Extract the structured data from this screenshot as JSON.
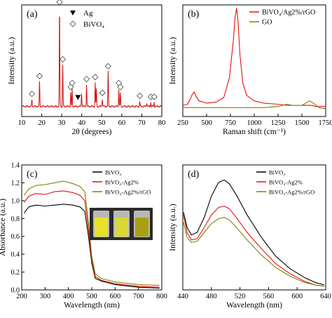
{
  "chart_data": [
    {
      "panel_label": "(a)",
      "type": "line",
      "xlabel": "2θ (degrees)",
      "ylabel": "Intensity (a.u.)",
      "xlim": [
        10,
        80
      ],
      "xticks": [
        10,
        20,
        30,
        40,
        50,
        60,
        70,
        80
      ],
      "yticks_shown": false,
      "legend": [
        {
          "marker": "filled-down-triangle",
          "label": "Ag"
        },
        {
          "marker": "open-diamond",
          "label": "BiVO₄"
        }
      ],
      "legend_position": "top-center",
      "series": [
        {
          "color": "#d01010",
          "peaks": [
            [
              15.1,
              0.07
            ],
            [
              18.9,
              0.25
            ],
            [
              28.9,
              1.0
            ],
            [
              30.5,
              0.42
            ],
            [
              34.5,
              0.14
            ],
            [
              35.2,
              0.18
            ],
            [
              39.9,
              0.14
            ],
            [
              42.4,
              0.22
            ],
            [
              46.7,
              0.24
            ],
            [
              47.3,
              0.18
            ],
            [
              50.3,
              0.08
            ],
            [
              53.2,
              0.35
            ],
            [
              58.5,
              0.18
            ],
            [
              59.3,
              0.14
            ],
            [
              69.0,
              0.05
            ],
            [
              72.5,
              0.04
            ],
            [
              74.5,
              0.04
            ],
            [
              76.2,
              0.04
            ]
          ]
        }
      ],
      "markers": {
        "diamond": [
          15.1,
          18.9,
          28.9,
          30.5,
          34.5,
          35.2,
          42.4,
          46.7,
          50.3,
          53.2,
          58.5,
          59.3,
          69.0,
          74.5,
          76.2
        ],
        "triangle": [
          38.1
        ]
      }
    },
    {
      "panel_label": "(b)",
      "type": "line",
      "xlabel": "Raman shift (cm⁻¹)",
      "ylabel": "Intensity (a.u.)",
      "xlim": [
        250,
        1750
      ],
      "xticks": [
        250,
        500,
        750,
        1000,
        1250,
        1500,
        1750
      ],
      "yticks_shown": false,
      "legend_position": "top-right",
      "series": [
        {
          "name": "BiVO₄/Ag2%/rGO",
          "color": "#e81010",
          "points": [
            [
              250,
              0.1
            ],
            [
              300,
              0.11
            ],
            [
              330,
              0.16
            ],
            [
              350,
              0.2
            ],
            [
              370,
              0.22
            ],
            [
              390,
              0.18
            ],
            [
              420,
              0.14
            ],
            [
              500,
              0.12
            ],
            [
              600,
              0.13
            ],
            [
              680,
              0.17
            ],
            [
              740,
              0.35
            ],
            [
              780,
              0.68
            ],
            [
              800,
              0.9
            ],
            [
              815,
              0.97
            ],
            [
              830,
              0.85
            ],
            [
              850,
              0.55
            ],
            [
              880,
              0.3
            ],
            [
              920,
              0.19
            ],
            [
              1000,
              0.14
            ],
            [
              1100,
              0.12
            ],
            [
              1250,
              0.11
            ],
            [
              1350,
              0.1
            ],
            [
              1500,
              0.1
            ],
            [
              1600,
              0.1
            ],
            [
              1650,
              0.09
            ],
            [
              1750,
              0.09
            ]
          ]
        },
        {
          "name": "GO",
          "color": "#808000",
          "points": [
            [
              250,
              0.08
            ],
            [
              500,
              0.08
            ],
            [
              800,
              0.08
            ],
            [
              1100,
              0.08
            ],
            [
              1250,
              0.09
            ],
            [
              1340,
              0.11
            ],
            [
              1400,
              0.1
            ],
            [
              1500,
              0.1
            ],
            [
              1580,
              0.14
            ],
            [
              1620,
              0.12
            ],
            [
              1680,
              0.08
            ],
            [
              1750,
              0.07
            ]
          ]
        }
      ]
    },
    {
      "panel_label": "(c)",
      "type": "line",
      "xlabel": "Wavelength (nm)",
      "ylabel": "Absorbance (a.u.)",
      "xlim": [
        200,
        800
      ],
      "ylim": [
        0,
        1.4
      ],
      "xticks": [
        200,
        300,
        400,
        500,
        600,
        700,
        800
      ],
      "yticks": [
        0.0,
        0.2,
        0.4,
        0.6,
        0.8,
        1.0,
        1.2,
        1.4
      ],
      "legend_position": "top-right",
      "inset": "photo of three sample vials",
      "series": [
        {
          "name": "BiVO₄",
          "color": "#000000",
          "points": [
            [
              210,
              0.86
            ],
            [
              230,
              0.93
            ],
            [
              260,
              0.95
            ],
            [
              300,
              0.94
            ],
            [
              340,
              0.95
            ],
            [
              380,
              0.96
            ],
            [
              420,
              0.95
            ],
            [
              450,
              0.93
            ],
            [
              470,
              0.88
            ],
            [
              485,
              0.62
            ],
            [
              500,
              0.3
            ],
            [
              515,
              0.13
            ],
            [
              540,
              0.1
            ],
            [
              600,
              0.06
            ],
            [
              700,
              0.03
            ],
            [
              790,
              0.02
            ]
          ]
        },
        {
          "name": "BiVO₄-Ag2%",
          "color": "#e81010",
          "points": [
            [
              210,
              0.98
            ],
            [
              230,
              1.05
            ],
            [
              260,
              1.08
            ],
            [
              300,
              1.07
            ],
            [
              340,
              1.1
            ],
            [
              380,
              1.11
            ],
            [
              420,
              1.09
            ],
            [
              450,
              1.06
            ],
            [
              470,
              1.0
            ],
            [
              485,
              0.7
            ],
            [
              500,
              0.33
            ],
            [
              515,
              0.15
            ],
            [
              540,
              0.11
            ],
            [
              600,
              0.07
            ],
            [
              700,
              0.04
            ],
            [
              790,
              0.03
            ]
          ]
        },
        {
          "name": "BiVO₄-Ag2%/rGO",
          "color": "#808000",
          "points": [
            [
              210,
              1.06
            ],
            [
              230,
              1.13
            ],
            [
              260,
              1.17
            ],
            [
              300,
              1.18
            ],
            [
              340,
              1.2
            ],
            [
              380,
              1.22
            ],
            [
              420,
              1.19
            ],
            [
              450,
              1.16
            ],
            [
              470,
              1.1
            ],
            [
              485,
              0.78
            ],
            [
              500,
              0.38
            ],
            [
              515,
              0.18
            ],
            [
              540,
              0.13
            ],
            [
              600,
              0.09
            ],
            [
              700,
              0.06
            ],
            [
              790,
              0.05
            ]
          ]
        }
      ]
    },
    {
      "panel_label": "(d)",
      "type": "line",
      "xlabel": "Wavelength (nm)",
      "ylabel": "Intensity (a.u.)",
      "xlim": [
        440,
        640
      ],
      "xticks": [
        440,
        480,
        520,
        560,
        600,
        640
      ],
      "yticks_shown": false,
      "legend_position": "top-right",
      "series": [
        {
          "name": "BiVO₄",
          "color": "#000000",
          "points": [
            [
              441,
              0.62
            ],
            [
              446,
              0.5
            ],
            [
              452,
              0.44
            ],
            [
              460,
              0.46
            ],
            [
              470,
              0.58
            ],
            [
              480,
              0.75
            ],
            [
              490,
              0.86
            ],
            [
              498,
              0.88
            ],
            [
              505,
              0.85
            ],
            [
              515,
              0.76
            ],
            [
              530,
              0.6
            ],
            [
              550,
              0.42
            ],
            [
              570,
              0.27
            ],
            [
              590,
              0.17
            ],
            [
              610,
              0.1
            ],
            [
              625,
              0.06
            ],
            [
              638,
              0.04
            ]
          ]
        },
        {
          "name": "BiVO₄-Ag2%",
          "color": "#e81010",
          "points": [
            [
              441,
              0.6
            ],
            [
              446,
              0.46
            ],
            [
              452,
              0.4
            ],
            [
              460,
              0.41
            ],
            [
              470,
              0.5
            ],
            [
              480,
              0.6
            ],
            [
              490,
              0.66
            ],
            [
              498,
              0.67
            ],
            [
              505,
              0.65
            ],
            [
              515,
              0.58
            ],
            [
              530,
              0.46
            ],
            [
              550,
              0.33
            ],
            [
              570,
              0.21
            ],
            [
              590,
              0.13
            ],
            [
              610,
              0.07
            ],
            [
              625,
              0.04
            ],
            [
              638,
              0.03
            ]
          ]
        },
        {
          "name": "BiVO₄-Ag2%/rGO",
          "color": "#808000",
          "points": [
            [
              441,
              0.54
            ],
            [
              446,
              0.42
            ],
            [
              452,
              0.38
            ],
            [
              460,
              0.39
            ],
            [
              470,
              0.46
            ],
            [
              480,
              0.53
            ],
            [
              490,
              0.57
            ],
            [
              498,
              0.58
            ],
            [
              505,
              0.56
            ],
            [
              515,
              0.5
            ],
            [
              530,
              0.4
            ],
            [
              550,
              0.28
            ],
            [
              570,
              0.18
            ],
            [
              590,
              0.11
            ],
            [
              610,
              0.06
            ],
            [
              625,
              0.04
            ],
            [
              638,
              0.03
            ]
          ]
        }
      ]
    }
  ]
}
